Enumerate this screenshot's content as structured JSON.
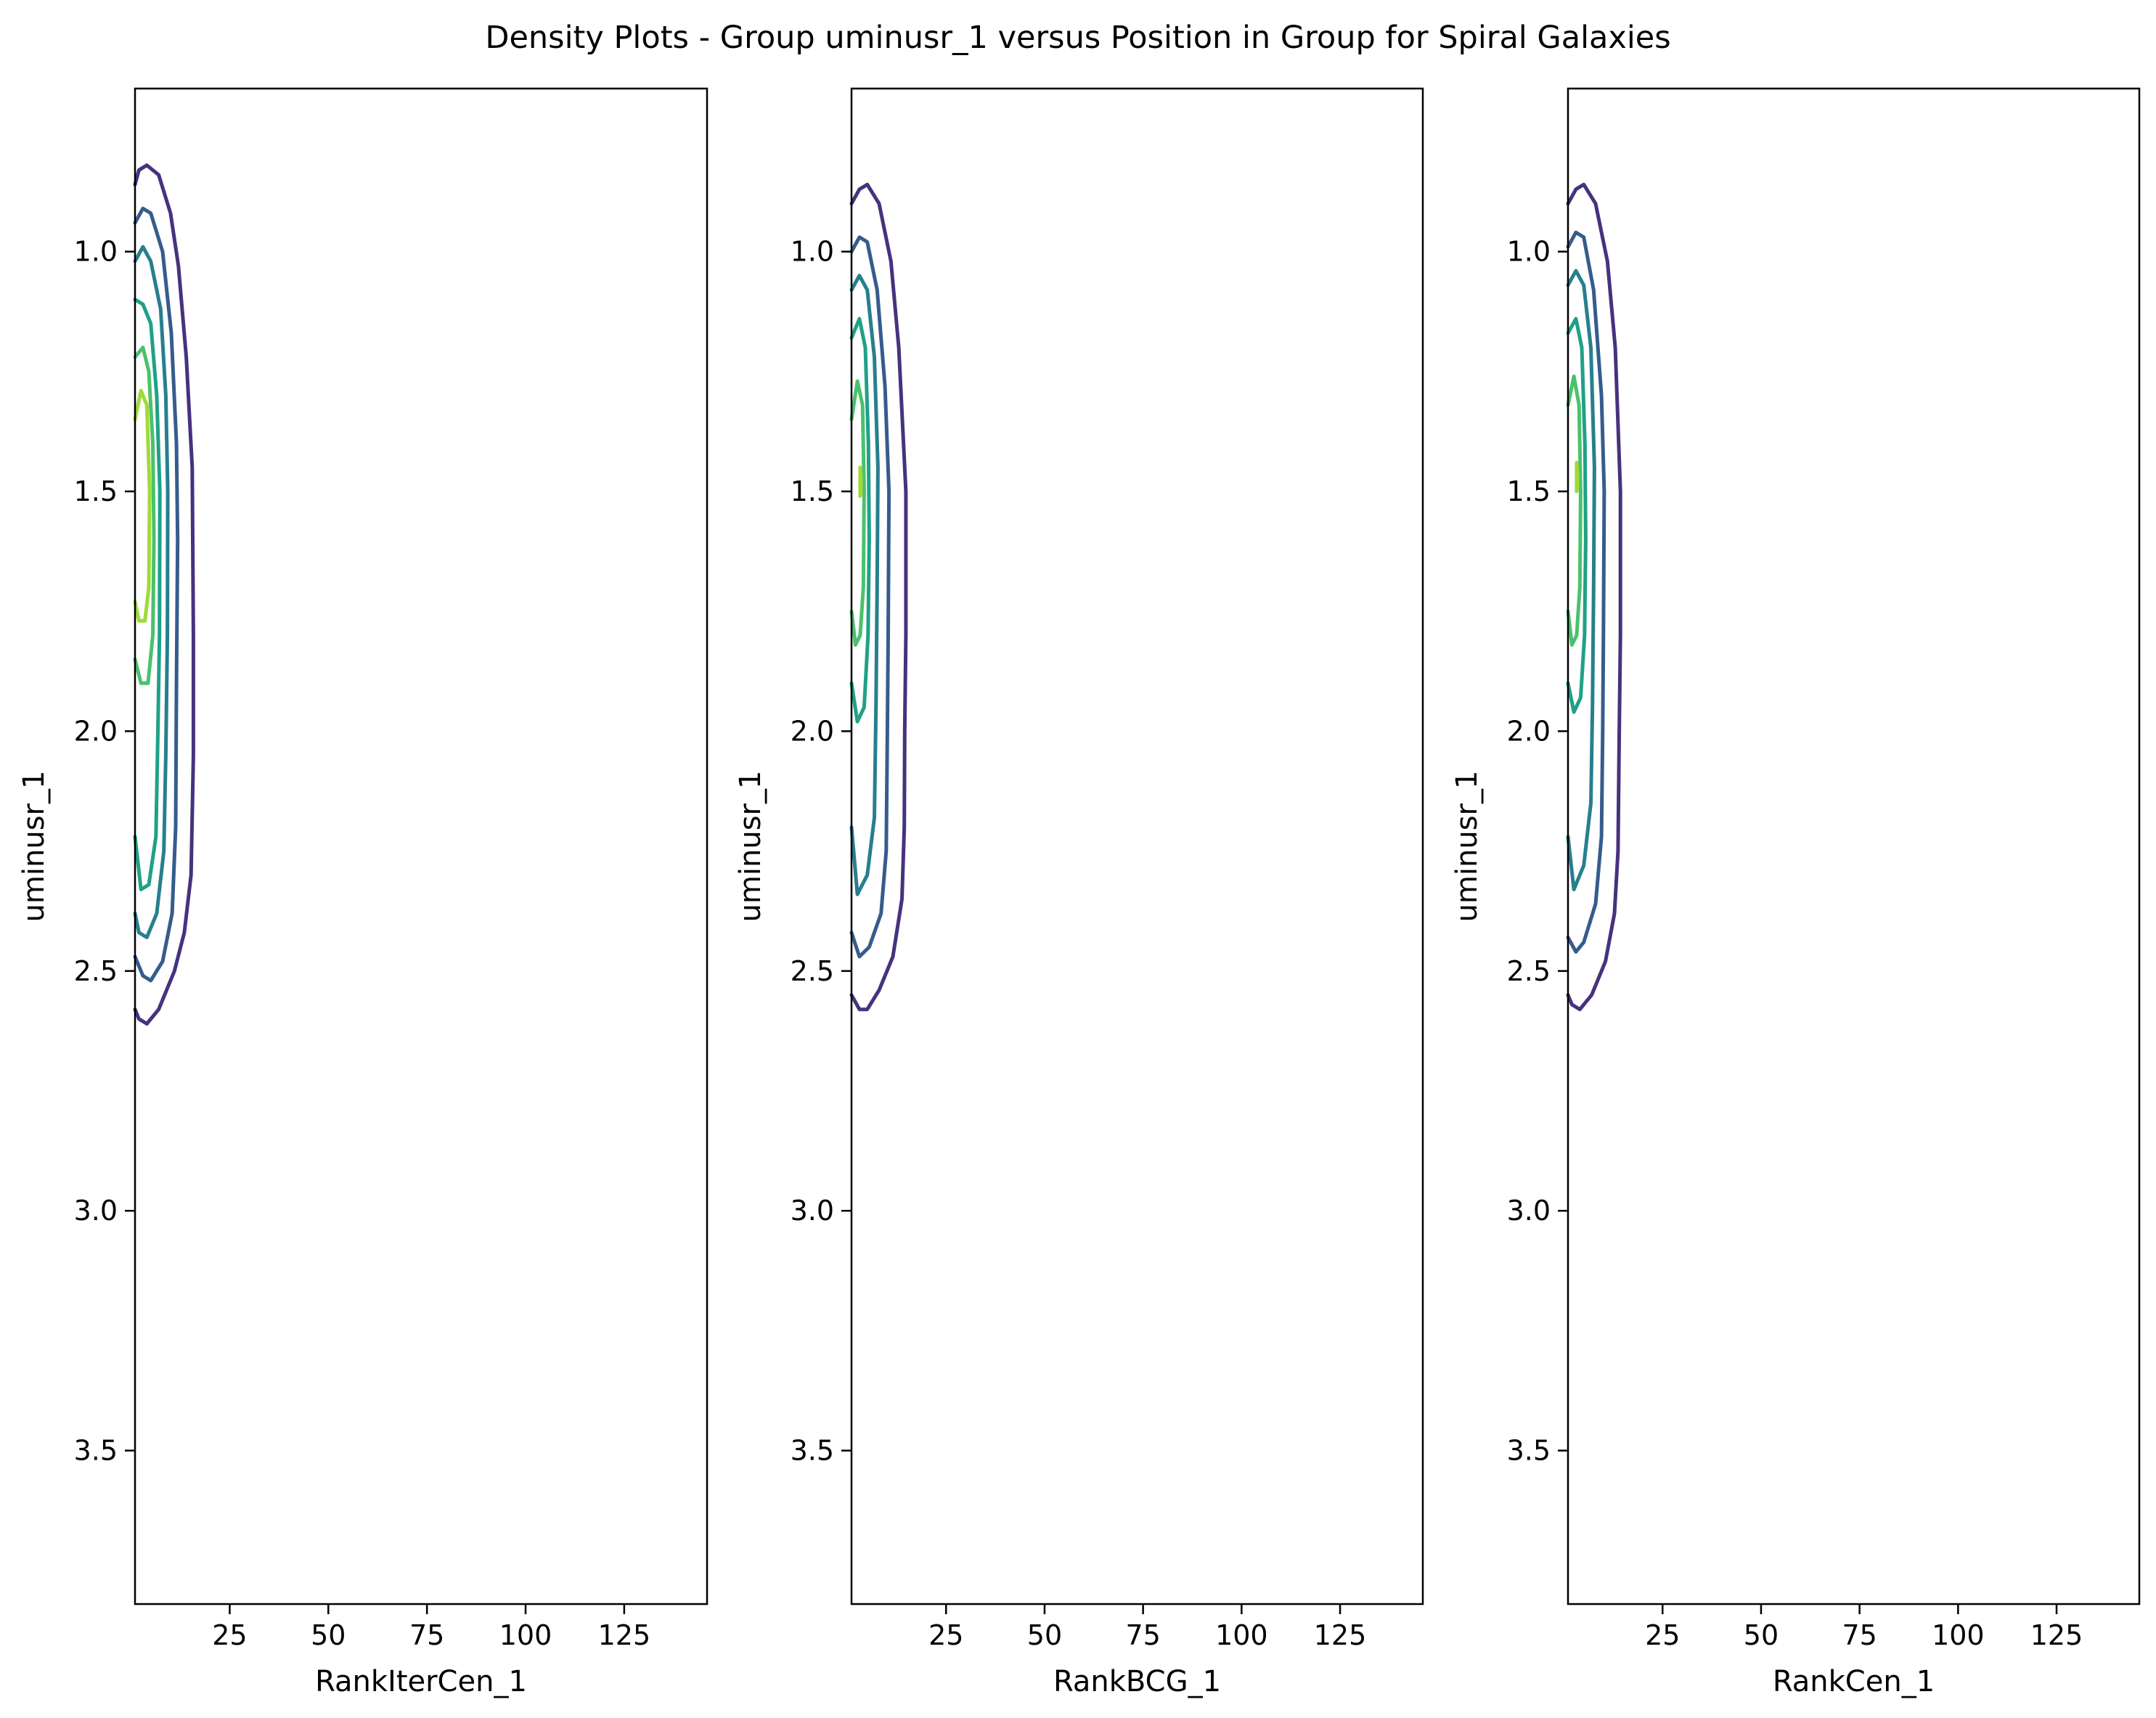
{
  "figure": {
    "title": "Density Plots - Group uminusr_1 versus Position in Group for Spiral Galaxies"
  },
  "colors": {
    "levels": [
      "#46327e",
      "#365c8d",
      "#277f8e",
      "#1fa187",
      "#4ac16d",
      "#a0da39"
    ],
    "frame": "#000000"
  },
  "chart_data": [
    {
      "type": "contour",
      "xlabel": "RankIterCen_1",
      "ylabel": "uminusr_1",
      "xlim": [
        1,
        146
      ],
      "ylim": [
        3.82,
        0.66
      ],
      "y_inverted": true,
      "xticks": [
        25,
        50,
        75,
        100,
        125
      ],
      "xtick_labels": [
        "25",
        "50",
        "75",
        "100",
        "125"
      ],
      "yticks": [
        1.0,
        1.5,
        2.0,
        2.5,
        3.0,
        3.5
      ],
      "ytick_labels": [
        "1.0",
        "1.5",
        "2.0",
        "2.5",
        "3.0",
        "3.5"
      ],
      "contours": [
        {
          "level": 1,
          "color": "#46327e",
          "points": [
            [
              1,
              0.86
            ],
            [
              2,
              0.83
            ],
            [
              4,
              0.82
            ],
            [
              7,
              0.84
            ],
            [
              10,
              0.92
            ],
            [
              12,
              1.03
            ],
            [
              14,
              1.22
            ],
            [
              15.5,
              1.45
            ],
            [
              15.8,
              1.8
            ],
            [
              15.8,
              2.05
            ],
            [
              15.2,
              2.3
            ],
            [
              13.5,
              2.42
            ],
            [
              11,
              2.5
            ],
            [
              7,
              2.58
            ],
            [
              4,
              2.61
            ],
            [
              2,
              2.6
            ],
            [
              1,
              2.58
            ]
          ]
        },
        {
          "level": 2,
          "color": "#365c8d",
          "points": [
            [
              1,
              0.94
            ],
            [
              3,
              0.91
            ],
            [
              5,
              0.92
            ],
            [
              8,
              1.0
            ],
            [
              10.2,
              1.17
            ],
            [
              11.5,
              1.4
            ],
            [
              11.8,
              1.6
            ],
            [
              11.5,
              1.9
            ],
            [
              11.3,
              2.2
            ],
            [
              10.4,
              2.38
            ],
            [
              8,
              2.48
            ],
            [
              5,
              2.52
            ],
            [
              3,
              2.51
            ],
            [
              1,
              2.47
            ]
          ]
        },
        {
          "level": 3,
          "color": "#277f8e",
          "points": [
            [
              1,
              1.02
            ],
            [
              3,
              0.99
            ],
            [
              5,
              1.02
            ],
            [
              7.5,
              1.12
            ],
            [
              8.8,
              1.3
            ],
            [
              9.3,
              1.5
            ],
            [
              9.2,
              1.8
            ],
            [
              8.8,
              2.05
            ],
            [
              8.3,
              2.25
            ],
            [
              6.5,
              2.38
            ],
            [
              4,
              2.43
            ],
            [
              2,
              2.42
            ],
            [
              1,
              2.38
            ]
          ]
        },
        {
          "level": 4,
          "color": "#1fa187",
          "points": [
            [
              1,
              1.1
            ],
            [
              3,
              1.11
            ],
            [
              5,
              1.15
            ],
            [
              6.5,
              1.3
            ],
            [
              7.3,
              1.5
            ],
            [
              7.2,
              1.8
            ],
            [
              6.8,
              2.0
            ],
            [
              6.3,
              2.22
            ],
            [
              4.5,
              2.32
            ],
            [
              2.5,
              2.33
            ],
            [
              1,
              2.22
            ]
          ]
        },
        {
          "level": 5,
          "color": "#4ac16d",
          "points": [
            [
              1,
              1.22
            ],
            [
              3,
              1.2
            ],
            [
              4.5,
              1.25
            ],
            [
              5.5,
              1.4
            ],
            [
              5.8,
              1.6
            ],
            [
              5.5,
              1.8
            ],
            [
              4.3,
              1.9
            ],
            [
              2.5,
              1.9
            ],
            [
              1,
              1.85
            ]
          ]
        },
        {
          "level": 6,
          "color": "#a0da39",
          "points": [
            [
              1,
              1.35
            ],
            [
              2.5,
              1.29
            ],
            [
              4,
              1.32
            ],
            [
              4.7,
              1.5
            ],
            [
              4.5,
              1.7
            ],
            [
              3.5,
              1.77
            ],
            [
              2,
              1.77
            ],
            [
              1,
              1.73
            ]
          ]
        }
      ]
    },
    {
      "type": "contour",
      "xlabel": "RankBCG_1",
      "ylabel": "uminusr_1",
      "xlim": [
        1,
        146
      ],
      "ylim": [
        3.82,
        0.66
      ],
      "y_inverted": true,
      "xticks": [
        25,
        50,
        75,
        100,
        125
      ],
      "xtick_labels": [
        "25",
        "50",
        "75",
        "100",
        "125"
      ],
      "yticks": [
        1.0,
        1.5,
        2.0,
        2.5,
        3.0,
        3.5
      ],
      "ytick_labels": [
        "1.0",
        "1.5",
        "2.0",
        "2.5",
        "3.0",
        "3.5"
      ],
      "contours": [
        {
          "level": 1,
          "color": "#46327e",
          "points": [
            [
              1,
              0.9
            ],
            [
              3,
              0.87
            ],
            [
              5,
              0.86
            ],
            [
              8,
              0.9
            ],
            [
              11,
              1.02
            ],
            [
              13,
              1.2
            ],
            [
              14.8,
              1.5
            ],
            [
              14.8,
              1.8
            ],
            [
              14.5,
              2.0
            ],
            [
              14.4,
              2.2
            ],
            [
              13.8,
              2.35
            ],
            [
              11.5,
              2.47
            ],
            [
              8,
              2.54
            ],
            [
              5,
              2.58
            ],
            [
              3,
              2.58
            ],
            [
              1,
              2.55
            ]
          ]
        },
        {
          "level": 2,
          "color": "#365c8d",
          "points": [
            [
              1,
              1.0
            ],
            [
              3,
              0.97
            ],
            [
              5,
              0.98
            ],
            [
              7.5,
              1.08
            ],
            [
              9.5,
              1.28
            ],
            [
              10.5,
              1.5
            ],
            [
              10.3,
              1.8
            ],
            [
              10.1,
              2.0
            ],
            [
              9.8,
              2.25
            ],
            [
              8.5,
              2.38
            ],
            [
              5.5,
              2.45
            ],
            [
              3,
              2.47
            ],
            [
              1,
              2.42
            ]
          ]
        },
        {
          "level": 3,
          "color": "#277f8e",
          "points": [
            [
              1,
              1.08
            ],
            [
              3,
              1.05
            ],
            [
              5,
              1.08
            ],
            [
              6.8,
              1.22
            ],
            [
              7.7,
              1.45
            ],
            [
              7.5,
              1.7
            ],
            [
              7.2,
              1.95
            ],
            [
              6.8,
              2.18
            ],
            [
              5,
              2.3
            ],
            [
              2.5,
              2.34
            ],
            [
              1,
              2.2
            ]
          ]
        },
        {
          "level": 4,
          "color": "#1fa187",
          "points": [
            [
              1,
              1.18
            ],
            [
              3,
              1.14
            ],
            [
              4.5,
              1.2
            ],
            [
              5.3,
              1.4
            ],
            [
              5.5,
              1.6
            ],
            [
              5.2,
              1.8
            ],
            [
              4.2,
              1.95
            ],
            [
              2.5,
              1.98
            ],
            [
              1,
              1.9
            ]
          ]
        },
        {
          "level": 5,
          "color": "#4ac16d",
          "points": [
            [
              1,
              1.35
            ],
            [
              2.5,
              1.27
            ],
            [
              3.8,
              1.32
            ],
            [
              4.2,
              1.5
            ],
            [
              4,
              1.7
            ],
            [
              3.2,
              1.8
            ],
            [
              2,
              1.82
            ],
            [
              1,
              1.75
            ]
          ]
        },
        {
          "level": 6,
          "color": "#a0da39",
          "points": [
            [
              3.2,
              1.45
            ],
            [
              3.4,
              1.47
            ],
            [
              3.4,
              1.5
            ],
            [
              3.2,
              1.51
            ],
            [
              3.2,
              1.45
            ]
          ]
        }
      ]
    },
    {
      "type": "contour",
      "xlabel": "RankCen_1",
      "ylabel": "uminusr_1",
      "xlim": [
        1,
        146
      ],
      "ylim": [
        3.82,
        0.66
      ],
      "y_inverted": true,
      "xticks": [
        25,
        50,
        75,
        100,
        125
      ],
      "xtick_labels": [
        "25",
        "50",
        "75",
        "100",
        "125"
      ],
      "yticks": [
        1.0,
        1.5,
        2.0,
        2.5,
        3.0,
        3.5
      ],
      "ytick_labels": [
        "1.0",
        "1.5",
        "2.0",
        "2.5",
        "3.0",
        "3.5"
      ],
      "contours": [
        {
          "level": 1,
          "color": "#46327e",
          "points": [
            [
              1,
              0.9
            ],
            [
              3,
              0.87
            ],
            [
              5,
              0.86
            ],
            [
              8,
              0.9
            ],
            [
              11,
              1.02
            ],
            [
              13,
              1.2
            ],
            [
              14.3,
              1.5
            ],
            [
              14.3,
              1.8
            ],
            [
              14,
              2.0
            ],
            [
              13.7,
              2.25
            ],
            [
              12.8,
              2.38
            ],
            [
              10.5,
              2.48
            ],
            [
              7,
              2.55
            ],
            [
              4,
              2.58
            ],
            [
              2,
              2.57
            ],
            [
              1,
              2.55
            ]
          ]
        },
        {
          "level": 2,
          "color": "#365c8d",
          "points": [
            [
              1,
              0.99
            ],
            [
              3,
              0.96
            ],
            [
              5,
              0.97
            ],
            [
              7.5,
              1.08
            ],
            [
              9.5,
              1.3
            ],
            [
              10.2,
              1.5
            ],
            [
              10.0,
              1.8
            ],
            [
              9.8,
              2.0
            ],
            [
              9.5,
              2.22
            ],
            [
              8,
              2.36
            ],
            [
              5,
              2.44
            ],
            [
              3,
              2.46
            ],
            [
              1,
              2.43
            ]
          ]
        },
        {
          "level": 3,
          "color": "#277f8e",
          "points": [
            [
              1,
              1.07
            ],
            [
              3,
              1.04
            ],
            [
              5,
              1.07
            ],
            [
              6.8,
              1.2
            ],
            [
              7.7,
              1.45
            ],
            [
              7.5,
              1.7
            ],
            [
              7.2,
              1.95
            ],
            [
              6.8,
              2.15
            ],
            [
              5,
              2.28
            ],
            [
              2.5,
              2.33
            ],
            [
              1,
              2.22
            ]
          ]
        },
        {
          "level": 4,
          "color": "#1fa187",
          "points": [
            [
              1,
              1.17
            ],
            [
              3,
              1.14
            ],
            [
              4.5,
              1.2
            ],
            [
              5.3,
              1.4
            ],
            [
              5.5,
              1.6
            ],
            [
              5.2,
              1.8
            ],
            [
              4.2,
              1.93
            ],
            [
              2.5,
              1.96
            ],
            [
              1,
              1.9
            ]
          ]
        },
        {
          "level": 5,
          "color": "#4ac16d",
          "points": [
            [
              1,
              1.32
            ],
            [
              2.5,
              1.26
            ],
            [
              3.8,
              1.32
            ],
            [
              4.2,
              1.5
            ],
            [
              4,
              1.7
            ],
            [
              3.2,
              1.8
            ],
            [
              2,
              1.82
            ],
            [
              1,
              1.75
            ]
          ]
        },
        {
          "level": 6,
          "color": "#a0da39",
          "points": [
            [
              3.2,
              1.44
            ],
            [
              3.4,
              1.46
            ],
            [
              3.4,
              1.49
            ],
            [
              3.2,
              1.5
            ],
            [
              3.2,
              1.44
            ]
          ]
        }
      ]
    }
  ]
}
